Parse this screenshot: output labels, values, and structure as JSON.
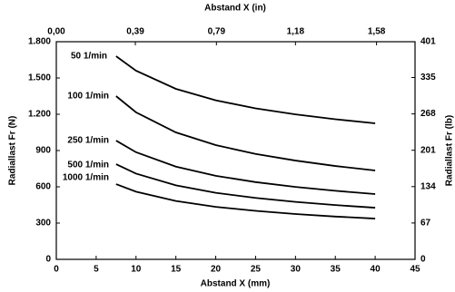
{
  "chart_data": {
    "type": "line",
    "x_label": "Abstand X (mm)",
    "x2_label": "Abstand X (in)",
    "y_label": "Radiallast Fr (N)",
    "y2_label": "Radiallast Fr (lb)",
    "x": [
      7.5,
      10,
      15,
      20,
      25,
      30,
      35,
      40
    ],
    "series": [
      {
        "name": "50 1/min",
        "color": "#000000",
        "values": [
          1680,
          1560,
          1410,
          1315,
          1249,
          1199,
          1159,
          1125
        ]
      },
      {
        "name": "100 1/min",
        "color": "#000000",
        "values": [
          1350,
          1216,
          1050,
          945,
          872,
          817,
          772,
          735
        ]
      },
      {
        "name": "250 1/min",
        "color": "#000000",
        "values": [
          982,
          886,
          767,
          691,
          639,
          599,
          567,
          540
        ]
      },
      {
        "name": "500 1/min",
        "color": "#000000",
        "values": [
          787,
          709,
          612,
          550,
          508,
          475,
          449,
          427
        ]
      },
      {
        "name": "1000 1/min",
        "color": "#000000",
        "values": [
          622,
          560,
          483,
          434,
          401,
          375,
          354,
          337
        ]
      }
    ],
    "xlim": [
      0,
      45
    ],
    "xticks": [
      0,
      5,
      10,
      15,
      20,
      25,
      30,
      35,
      40,
      45
    ],
    "x2lim": [
      0,
      1.77
    ],
    "x2ticks": [
      {
        "value": 0,
        "label": "0,00"
      },
      {
        "value": 0.39,
        "label": "0,39"
      },
      {
        "value": 0.79,
        "label": "0,79"
      },
      {
        "value": 1.18,
        "label": "1,18"
      },
      {
        "value": 1.58,
        "label": "1,58"
      }
    ],
    "ylim": [
      0,
      1800
    ],
    "yticks": [
      0,
      300,
      600,
      900,
      {
        "value": 1200,
        "label": "1.200"
      },
      {
        "value": 1500,
        "label": "1.500"
      },
      {
        "value": 1800,
        "label": "1.800"
      }
    ],
    "y2lim": [
      0,
      401
    ],
    "y2ticks": [
      0,
      67,
      134,
      201,
      268,
      335,
      401
    ],
    "grid": false
  }
}
